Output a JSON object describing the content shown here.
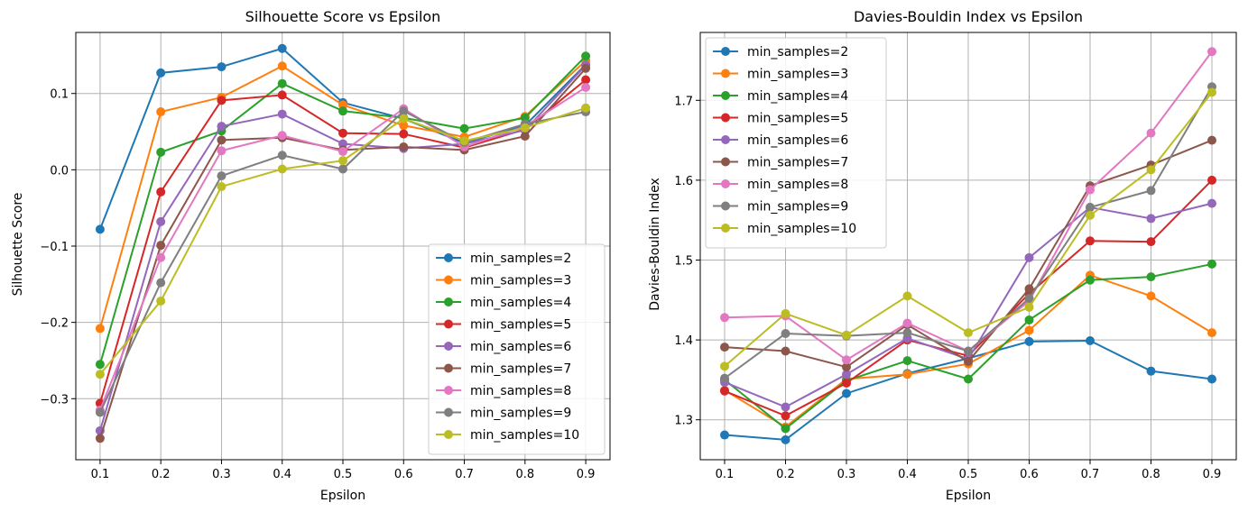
{
  "chart_data": [
    {
      "type": "line",
      "title": "Silhouette Score vs Epsilon",
      "xlabel": "Epsilon",
      "ylabel": "Silhouette Score",
      "x": [
        0.1,
        0.2,
        0.3,
        0.4,
        0.5,
        0.6,
        0.7,
        0.8,
        0.9
      ],
      "xticks": [
        "0.1",
        "0.2",
        "0.3",
        "0.4",
        "0.5",
        "0.6",
        "0.7",
        "0.8",
        "0.9"
      ],
      "yticks": [
        {
          "v": 0.1,
          "label": "0.1"
        },
        {
          "v": 0.0,
          "label": "0.0"
        },
        {
          "v": -0.1,
          "label": "−0.1"
        },
        {
          "v": -0.2,
          "label": "−0.2"
        },
        {
          "v": -0.3,
          "label": "−0.3"
        }
      ],
      "xlim": [
        0.06,
        0.94
      ],
      "ylim": [
        -0.38,
        0.18
      ],
      "grid": true,
      "legend": "lower-right",
      "series": [
        {
          "name": "min_samples=2",
          "color": "#1f77b4",
          "values": [
            -0.078,
            0.127,
            0.135,
            0.159,
            0.088,
            0.067,
            0.035,
            0.058,
            0.138
          ]
        },
        {
          "name": "min_samples=3",
          "color": "#ff7f0e",
          "values": [
            -0.208,
            0.076,
            0.095,
            0.136,
            0.085,
            0.058,
            0.043,
            0.07,
            0.143
          ]
        },
        {
          "name": "min_samples=4",
          "color": "#2ca02c",
          "values": [
            -0.255,
            0.023,
            0.051,
            0.113,
            0.077,
            0.068,
            0.054,
            0.068,
            0.149
          ]
        },
        {
          "name": "min_samples=5",
          "color": "#d62728",
          "values": [
            -0.306,
            -0.029,
            0.091,
            0.098,
            0.048,
            0.047,
            0.029,
            0.053,
            0.118
          ]
        },
        {
          "name": "min_samples=6",
          "color": "#9467bd",
          "values": [
            -0.342,
            -0.068,
            0.057,
            0.073,
            0.034,
            0.028,
            0.034,
            0.052,
            0.137
          ]
        },
        {
          "name": "min_samples=7",
          "color": "#8c564b",
          "values": [
            -0.352,
            -0.099,
            0.039,
            0.042,
            0.026,
            0.03,
            0.026,
            0.044,
            0.133
          ]
        },
        {
          "name": "min_samples=8",
          "color": "#e377c2",
          "values": [
            -0.315,
            -0.115,
            0.025,
            0.045,
            0.024,
            0.08,
            0.03,
            0.057,
            0.108
          ]
        },
        {
          "name": "min_samples=9",
          "color": "#7f7f7f",
          "values": [
            -0.318,
            -0.148,
            -0.008,
            0.019,
            0.001,
            0.077,
            0.036,
            0.06,
            0.076
          ]
        },
        {
          "name": "min_samples=10",
          "color": "#bcbd22",
          "values": [
            -0.268,
            -0.172,
            -0.022,
            0.001,
            0.012,
            0.067,
            0.038,
            0.055,
            0.081
          ]
        }
      ]
    },
    {
      "type": "line",
      "title": "Davies-Bouldin Index vs Epsilon",
      "xlabel": "Epsilon",
      "ylabel": "Davies-Bouldin Index",
      "x": [
        0.1,
        0.2,
        0.3,
        0.4,
        0.5,
        0.6,
        0.7,
        0.8,
        0.9
      ],
      "xticks": [
        "0.1",
        "0.2",
        "0.3",
        "0.4",
        "0.5",
        "0.6",
        "0.7",
        "0.8",
        "0.9"
      ],
      "yticks": [
        {
          "v": 1.3,
          "label": "1.3"
        },
        {
          "v": 1.4,
          "label": "1.4"
        },
        {
          "v": 1.5,
          "label": "1.5"
        },
        {
          "v": 1.6,
          "label": "1.6"
        },
        {
          "v": 1.7,
          "label": "1.7"
        }
      ],
      "xlim": [
        0.06,
        0.94
      ],
      "ylim": [
        1.25,
        1.785
      ],
      "grid": true,
      "legend": "upper-left",
      "series": [
        {
          "name": "min_samples=2",
          "color": "#1f77b4",
          "values": [
            1.281,
            1.275,
            1.333,
            1.358,
            1.377,
            1.398,
            1.399,
            1.361,
            1.351
          ]
        },
        {
          "name": "min_samples=3",
          "color": "#ff7f0e",
          "values": [
            1.337,
            1.291,
            1.351,
            1.357,
            1.37,
            1.412,
            1.481,
            1.455,
            1.409
          ]
        },
        {
          "name": "min_samples=4",
          "color": "#2ca02c",
          "values": [
            1.35,
            1.289,
            1.349,
            1.374,
            1.351,
            1.425,
            1.475,
            1.479,
            1.495
          ]
        },
        {
          "name": "min_samples=5",
          "color": "#d62728",
          "values": [
            1.336,
            1.305,
            1.346,
            1.4,
            1.38,
            1.458,
            1.524,
            1.523,
            1.6
          ]
        },
        {
          "name": "min_samples=6",
          "color": "#9467bd",
          "values": [
            1.347,
            1.316,
            1.357,
            1.402,
            1.376,
            1.503,
            1.566,
            1.552,
            1.571
          ]
        },
        {
          "name": "min_samples=7",
          "color": "#8c564b",
          "values": [
            1.391,
            1.386,
            1.366,
            1.419,
            1.373,
            1.464,
            1.593,
            1.619,
            1.65
          ]
        },
        {
          "name": "min_samples=8",
          "color": "#e377c2",
          "values": [
            1.428,
            1.43,
            1.375,
            1.421,
            1.386,
            1.449,
            1.588,
            1.659,
            1.761
          ]
        },
        {
          "name": "min_samples=9",
          "color": "#7f7f7f",
          "values": [
            1.352,
            1.408,
            1.405,
            1.409,
            1.386,
            1.452,
            1.566,
            1.587,
            1.717
          ]
        },
        {
          "name": "min_samples=10",
          "color": "#bcbd22",
          "values": [
            1.367,
            1.433,
            1.406,
            1.455,
            1.409,
            1.441,
            1.556,
            1.613,
            1.71
          ]
        }
      ]
    }
  ]
}
